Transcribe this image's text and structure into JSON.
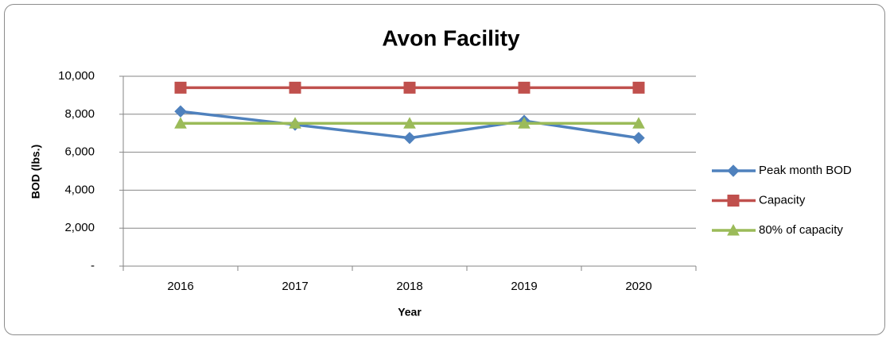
{
  "chart_data": {
    "type": "line",
    "title": "Avon Facility",
    "x_label": "Year",
    "y_label": "BOD (lbs.)",
    "categories": [
      "2016",
      "2017",
      "2018",
      "2019",
      "2020"
    ],
    "series": [
      {
        "name": "Peak month BOD",
        "color": "#4f81bd",
        "marker": "diamond",
        "values": [
          8150,
          7450,
          6750,
          7650,
          6750
        ]
      },
      {
        "name": "Capacity",
        "color": "#c0504d",
        "marker": "square",
        "values": [
          9400,
          9400,
          9400,
          9400,
          9400
        ]
      },
      {
        "name": "80% of capacity",
        "color": "#9bbb59",
        "marker": "triangle",
        "values": [
          7520,
          7520,
          7520,
          7520,
          7520
        ]
      }
    ],
    "ylim": [
      0,
      10000
    ],
    "yticks": [
      {
        "value": 0,
        "label": "-"
      },
      {
        "value": 2000,
        "label": "2,000"
      },
      {
        "value": 4000,
        "label": "4,000"
      },
      {
        "value": 6000,
        "label": "6,000"
      },
      {
        "value": 8000,
        "label": "8,000"
      },
      {
        "value": 10000,
        "label": "10,000"
      }
    ],
    "grid": true,
    "legend": "right"
  }
}
